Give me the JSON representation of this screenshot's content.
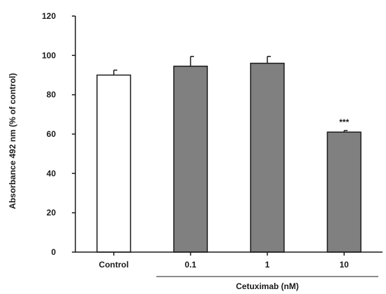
{
  "chart_data": {
    "type": "bar",
    "categories": [
      "Control",
      "0.1",
      "1",
      "10"
    ],
    "values": [
      90,
      94.5,
      96,
      61
    ],
    "errors": [
      2.5,
      5,
      3.5,
      0.8
    ],
    "bar_colors": [
      "#ffffff",
      "#808080",
      "#808080",
      "#808080"
    ],
    "annotations": [
      "",
      "",
      "",
      "***"
    ],
    "ylabel": "Absorbance 492 nm (% of control)",
    "group_label": "Cetuximab (nM)",
    "group_categories": [
      "0.1",
      "1",
      "10"
    ],
    "ylim": [
      0,
      120
    ],
    "yticks": [
      0,
      20,
      40,
      60,
      80,
      100,
      120
    ],
    "grid": false,
    "legend": "none"
  }
}
